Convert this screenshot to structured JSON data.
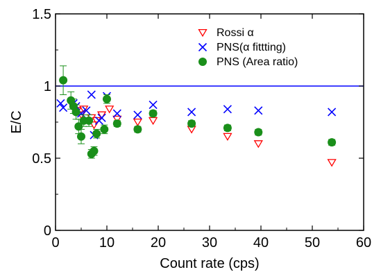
{
  "chart_data": {
    "type": "scatter",
    "xlabel": "Count rate (cps)",
    "ylabel": "E/C",
    "xlim": [
      0,
      60
    ],
    "ylim": [
      0,
      1.5
    ],
    "x_ticks": [
      0,
      10,
      20,
      30,
      40,
      50,
      60
    ],
    "y_ticks": [
      0,
      0.5,
      1,
      1.5
    ],
    "x_tick_labels": [
      "0",
      "10",
      "20",
      "30",
      "40",
      "50",
      "60"
    ],
    "y_tick_labels": [
      "0",
      "0.5",
      "1",
      "1.5"
    ],
    "reference_line": 1.0,
    "reference_line_color": "#0000ff",
    "legend_position": "top-right",
    "grid": false,
    "series": [
      {
        "name": "Rossi α",
        "marker": "triangle-down-open",
        "color": "#ff0000",
        "points": [
          {
            "x": 3.5,
            "y": 0.85
          },
          {
            "x": 4.2,
            "y": 0.83
          },
          {
            "x": 5.0,
            "y": 0.8
          },
          {
            "x": 5.5,
            "y": 0.84
          },
          {
            "x": 7.0,
            "y": 0.78
          },
          {
            "x": 7.5,
            "y": 0.73
          },
          {
            "x": 8.0,
            "y": 0.76
          },
          {
            "x": 9.0,
            "y": 0.8
          },
          {
            "x": 10.5,
            "y": 0.84
          },
          {
            "x": 12.0,
            "y": 0.77
          },
          {
            "x": 16.0,
            "y": 0.75
          },
          {
            "x": 19.0,
            "y": 0.76
          },
          {
            "x": 26.5,
            "y": 0.7
          },
          {
            "x": 33.5,
            "y": 0.65
          },
          {
            "x": 39.5,
            "y": 0.6
          },
          {
            "x": 53.8,
            "y": 0.47
          }
        ]
      },
      {
        "name": "PNS(α fittting)",
        "marker": "x",
        "color": "#0000ff",
        "points": [
          {
            "x": 1.0,
            "y": 0.88
          },
          {
            "x": 1.5,
            "y": 0.85
          },
          {
            "x": 3.5,
            "y": 0.88
          },
          {
            "x": 4.0,
            "y": 0.86
          },
          {
            "x": 5.0,
            "y": 0.81
          },
          {
            "x": 6.0,
            "y": 0.83
          },
          {
            "x": 7.0,
            "y": 0.94
          },
          {
            "x": 7.5,
            "y": 0.66
          },
          {
            "x": 8.5,
            "y": 0.76
          },
          {
            "x": 9.0,
            "y": 0.78
          },
          {
            "x": 10.0,
            "y": 0.93
          },
          {
            "x": 12.0,
            "y": 0.81
          },
          {
            "x": 16.0,
            "y": 0.8
          },
          {
            "x": 19.0,
            "y": 0.87
          },
          {
            "x": 26.5,
            "y": 0.82
          },
          {
            "x": 33.5,
            "y": 0.84
          },
          {
            "x": 39.5,
            "y": 0.83
          },
          {
            "x": 53.8,
            "y": 0.82
          }
        ]
      },
      {
        "name": "PNS (Area ratio)",
        "marker": "circle-filled",
        "color": "#1a8f1a",
        "points": [
          {
            "x": 1.5,
            "y": 1.04,
            "err": 0.1
          },
          {
            "x": 3.0,
            "y": 0.9,
            "err": 0.06
          },
          {
            "x": 3.5,
            "y": 0.86,
            "err": 0.05
          },
          {
            "x": 4.0,
            "y": 0.82,
            "err": 0.05
          },
          {
            "x": 4.5,
            "y": 0.72,
            "err": 0.05
          },
          {
            "x": 5.0,
            "y": 0.65,
            "err": 0.05
          },
          {
            "x": 5.5,
            "y": 0.76,
            "err": 0.04
          },
          {
            "x": 6.5,
            "y": 0.76,
            "err": 0.04
          },
          {
            "x": 7.0,
            "y": 0.53,
            "err": 0.03
          },
          {
            "x": 7.5,
            "y": 0.55,
            "err": 0.03
          },
          {
            "x": 8.0,
            "y": 0.67,
            "err": 0.03
          },
          {
            "x": 9.5,
            "y": 0.7,
            "err": 0.03
          },
          {
            "x": 10.0,
            "y": 0.91,
            "err": 0.03
          },
          {
            "x": 12.0,
            "y": 0.74,
            "err": 0.02
          },
          {
            "x": 16.0,
            "y": 0.7,
            "err": 0.02
          },
          {
            "x": 19.0,
            "y": 0.81,
            "err": 0.02
          },
          {
            "x": 26.5,
            "y": 0.74,
            "err": 0.02
          },
          {
            "x": 33.5,
            "y": 0.71,
            "err": 0.02
          },
          {
            "x": 39.5,
            "y": 0.68,
            "err": 0.02
          },
          {
            "x": 53.8,
            "y": 0.61,
            "err": 0.02
          }
        ]
      }
    ]
  }
}
